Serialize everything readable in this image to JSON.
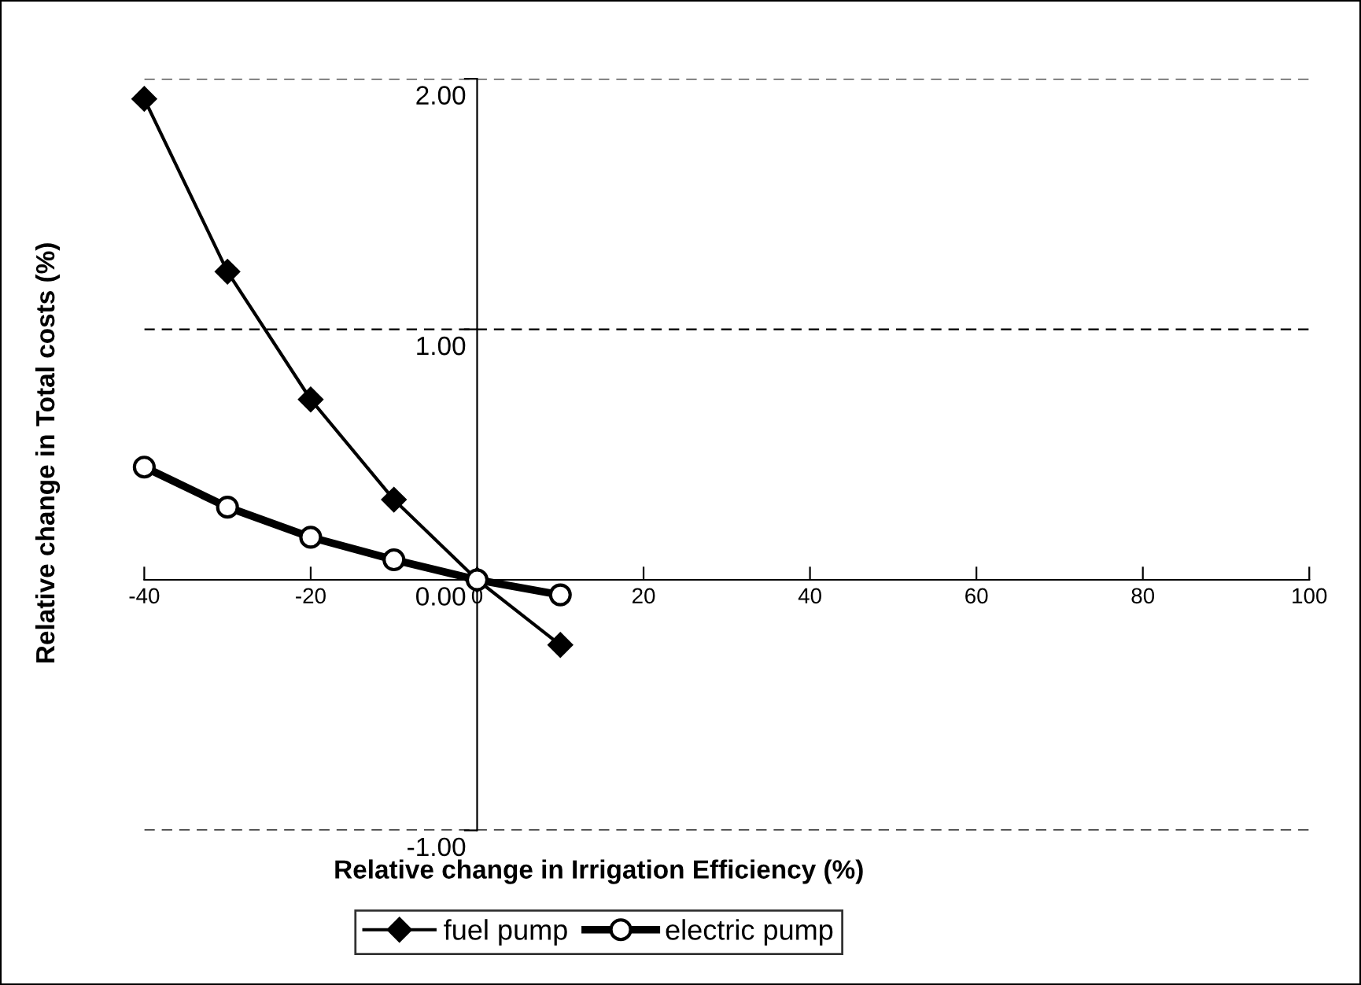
{
  "chart_data": {
    "type": "line",
    "xlabel": "Relative change in Irrigation Efficiency (%)",
    "ylabel": "Relative change in Total costs (%)",
    "x": [
      -40,
      -30,
      -20,
      -10,
      0,
      10
    ],
    "series": [
      {
        "name": "fuel pump",
        "color": "#000000",
        "marker": "diamond",
        "values": [
          1.92,
          1.23,
          0.72,
          0.32,
          0,
          -0.26
        ]
      },
      {
        "name": "electric pump",
        "color": "#000000",
        "marker": "circle",
        "values": [
          0.45,
          0.29,
          0.17,
          0.08,
          0,
          -0.06
        ]
      }
    ],
    "xlim": [
      -40,
      100
    ],
    "xticks": [
      -40,
      -20,
      0,
      20,
      40,
      60,
      80,
      100
    ],
    "ylim": [
      -1,
      2
    ],
    "yticks": [
      {
        "value": -1,
        "label": "-1.00"
      },
      {
        "value": 0,
        "label": "0.00"
      },
      {
        "value": 1,
        "label": "1.00"
      },
      {
        "value": 2,
        "label": "2.00"
      }
    ],
    "grid": "y",
    "legend": "bottom",
    "line_style": "solid"
  }
}
